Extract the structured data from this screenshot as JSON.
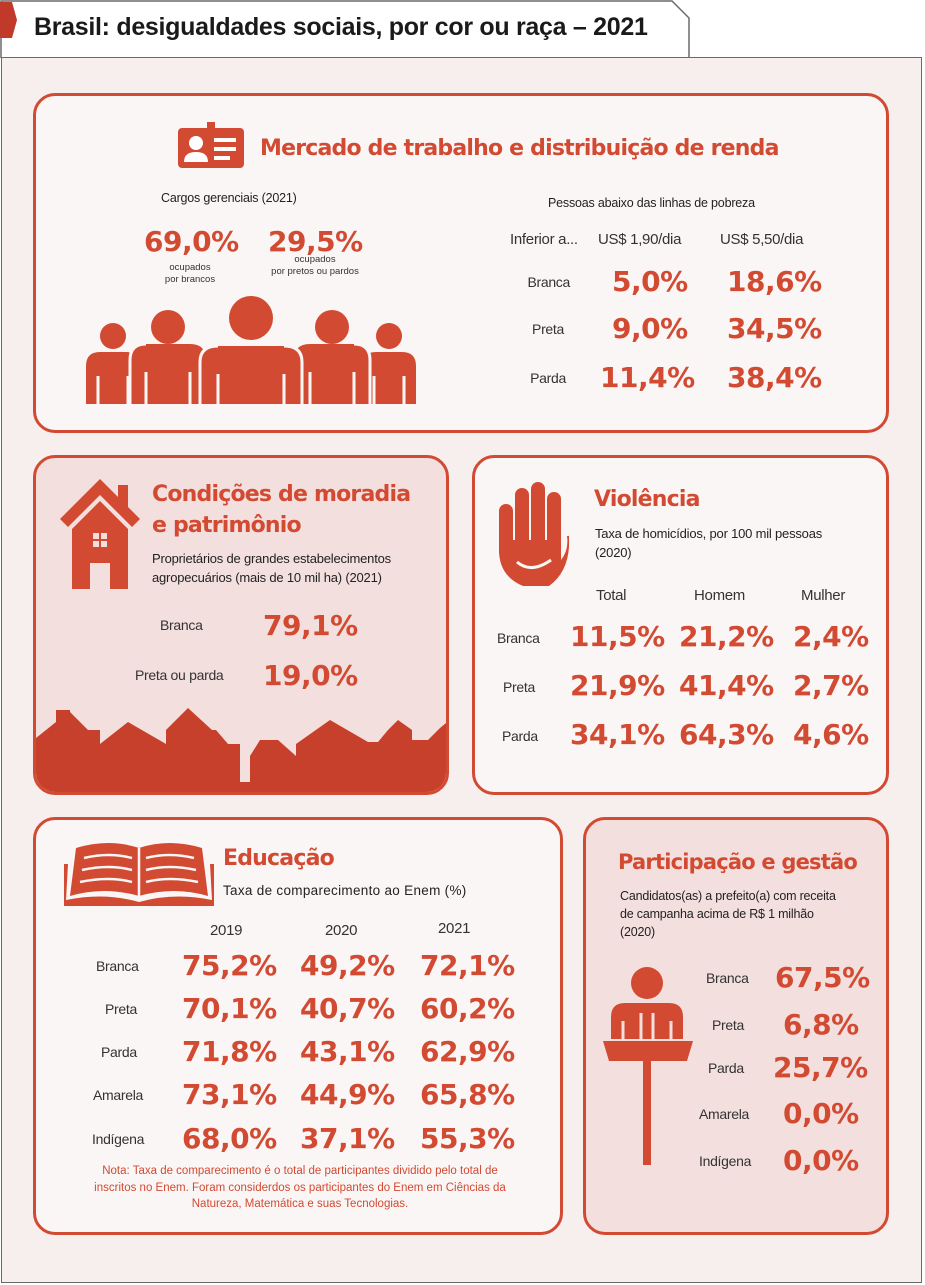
{
  "title": "Brasil: desigualdades sociais, por cor ou raça – 2021",
  "colors": {
    "accent": "#d24a32",
    "background": "#f6efee",
    "panel_light": "#faf6f5",
    "panel_pink": "#f3dfdd"
  },
  "trabalho": {
    "heading": "Mercado de trabalho e distribuição de renda",
    "icon": "id-card-icon",
    "cargos": {
      "label": "Cargos gerenciais (2021)",
      "brancos_value": "69,0%",
      "brancos_desc_1": "ocupados",
      "brancos_desc_2": "por brancos",
      "pretos_value": "29,5%",
      "pretos_desc_1": "ocupados",
      "pretos_desc_2": "por pretos ou pardos"
    },
    "pobreza": {
      "label": "Pessoas abaixo das linhas de pobreza",
      "col_0": "Inferior a...",
      "col_1": "US$ 1,90/dia",
      "col_2": "US$ 5,50/dia",
      "rows": [
        {
          "label": "Branca",
          "v1": "5,0%",
          "v2": "18,6%"
        },
        {
          "label": "Preta",
          "v1": "9,0%",
          "v2": "34,5%"
        },
        {
          "label": "Parda",
          "v1": "11,4%",
          "v2": "38,4%"
        }
      ]
    }
  },
  "moradia": {
    "heading_1": "Condições de moradia",
    "heading_2": "e patrimônio",
    "icon": "house-icon",
    "sub_1": "Proprietários de grandes estabelecimentos",
    "sub_2": "agropecuários (mais de 10 mil ha) (2021)",
    "rows": [
      {
        "label": "Branca",
        "value": "79,1%"
      },
      {
        "label": "Preta ou parda",
        "value": "19,0%"
      }
    ]
  },
  "violencia": {
    "heading": "Violência",
    "icon": "hand-stop-icon",
    "sub_1": "Taxa de homicídios, por 100 mil pessoas",
    "sub_2": "(2020)",
    "cols": [
      "Total",
      "Homem",
      "Mulher"
    ],
    "rows": [
      {
        "label": "Branca",
        "values": [
          "11,5%",
          "21,2%",
          "2,4%"
        ]
      },
      {
        "label": "Preta",
        "values": [
          "21,9%",
          "41,4%",
          "2,7%"
        ]
      },
      {
        "label": "Parda",
        "values": [
          "34,1%",
          "64,3%",
          "4,6%"
        ]
      }
    ]
  },
  "educacao": {
    "heading": "Educação",
    "icon": "open-book-icon",
    "sub": "Taxa de comparecimento ao Enem (%)",
    "cols": [
      "2019",
      "2020",
      "2021"
    ],
    "rows": [
      {
        "label": "Branca",
        "values": [
          "75,2%",
          "49,2%",
          "72,1%"
        ]
      },
      {
        "label": "Preta",
        "values": [
          "70,1%",
          "40,7%",
          "60,2%"
        ]
      },
      {
        "label": "Parda",
        "values": [
          "71,8%",
          "43,1%",
          "62,9%"
        ]
      },
      {
        "label": "Amarela",
        "values": [
          "73,1%",
          "44,9%",
          "65,8%"
        ]
      },
      {
        "label": "Indígena",
        "values": [
          "68,0%",
          "37,1%",
          "55,3%"
        ]
      }
    ],
    "note_1": "Nota: Taxa de comparecimento é o total de participantes dividido pelo total de",
    "note_2": "inscritos no Enem. Foram considerdos os participantes do Enem em Ciências da",
    "note_3": "Natureza, Matemática e suas Tecnologias."
  },
  "participacao": {
    "heading": "Participação e gestão",
    "icon": "speaker-podium-icon",
    "sub_1": "Candidatos(as) a prefeito(a) com receita",
    "sub_2": "de campanha acima de R$ 1 milhão",
    "sub_3": "(2020)",
    "rows": [
      {
        "label": "Branca",
        "value": "67,5%"
      },
      {
        "label": "Preta",
        "value": "6,8%"
      },
      {
        "label": "Parda",
        "value": "25,7%"
      },
      {
        "label": "Amarela",
        "value": "0,0%"
      },
      {
        "label": "Indígena",
        "value": "0,0%"
      }
    ]
  }
}
